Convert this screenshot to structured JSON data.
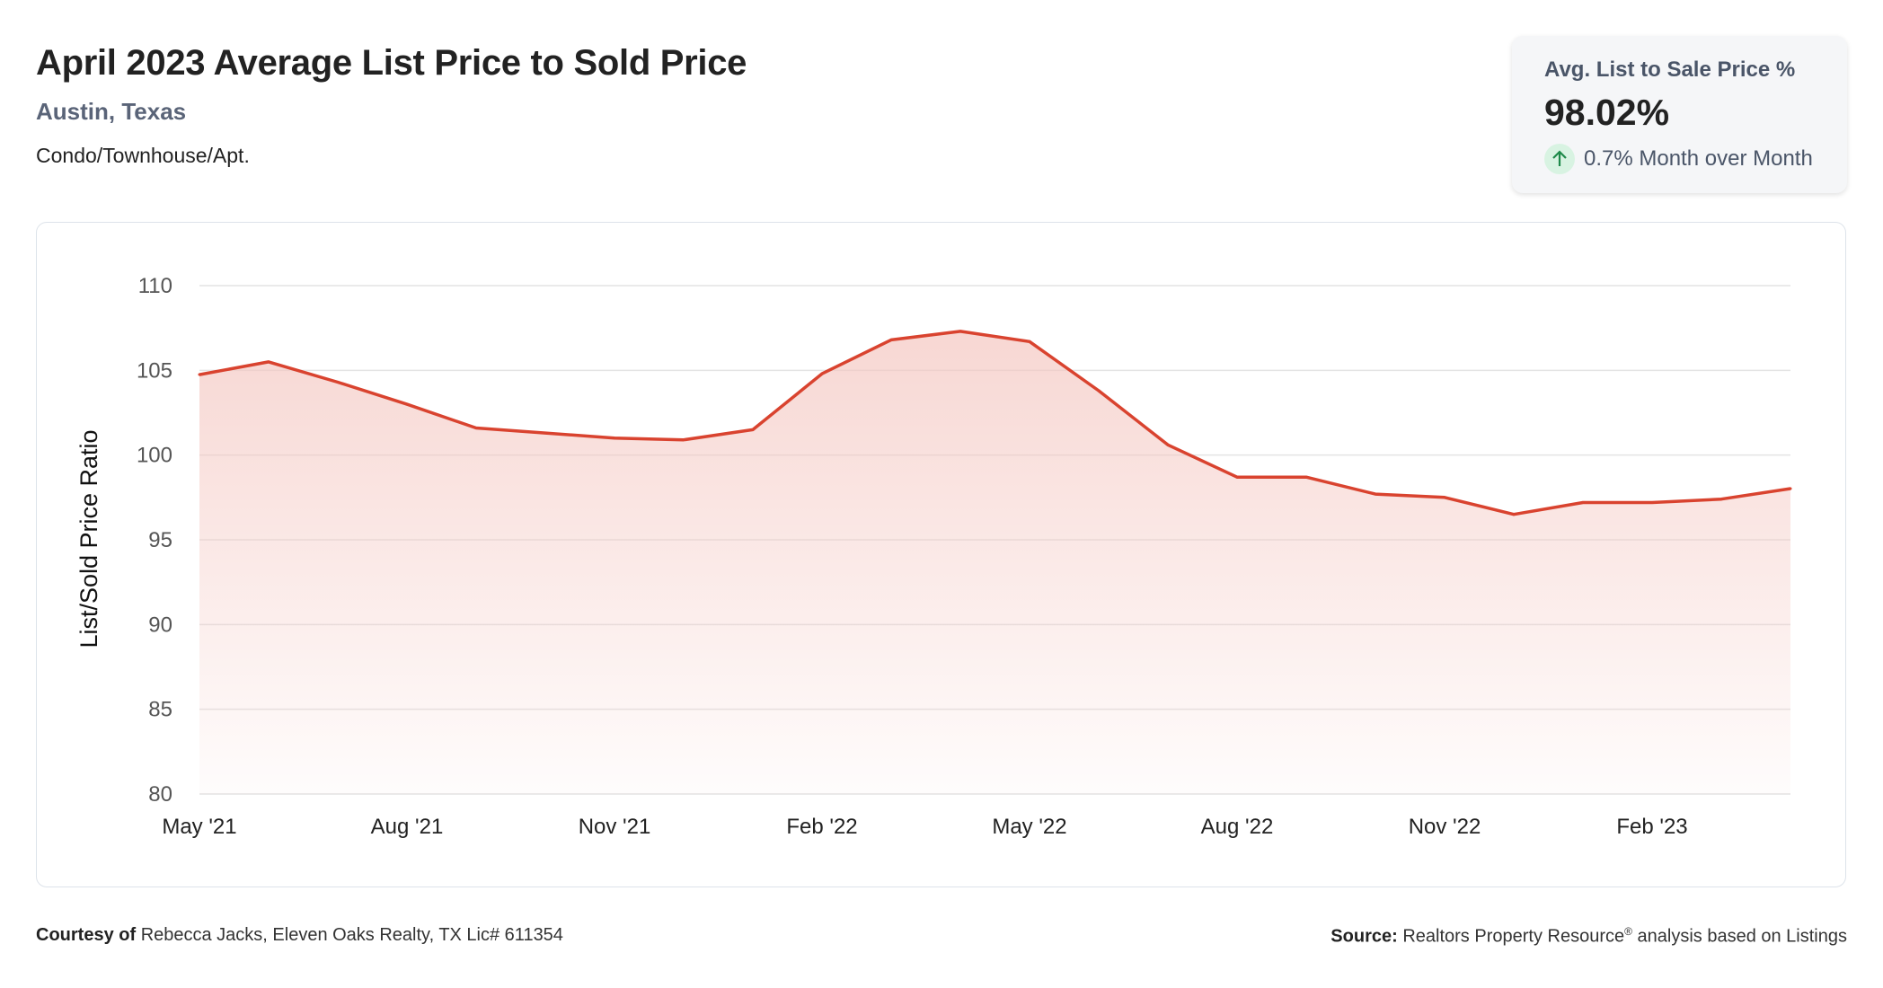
{
  "header": {
    "title": "April 2023 Average List Price to Sold Price",
    "location": "Austin, Texas",
    "property_type": "Condo/Townhouse/Apt."
  },
  "stat_card": {
    "label": "Avg. List to Sale Price %",
    "value": "98.02%",
    "change": "0.7% Month over Month",
    "change_direction": "up",
    "icon": "arrow-up-icon"
  },
  "footer": {
    "courtesy_label": "Courtesy of",
    "courtesy_text": "Rebecca Jacks, Eleven Oaks Realty, TX Lic# 611354",
    "source_label": "Source:",
    "source_text_1": "Realtors Property Resource",
    "source_sup": "®",
    "source_text_2": " analysis based on Listings"
  },
  "colors": {
    "line": "#d9432f",
    "fill": "#f4c6c0",
    "grid": "#e4e4e4"
  },
  "chart_data": {
    "type": "area",
    "title": "April 2023 Average List Price to Sold Price",
    "xlabel": "",
    "ylabel": "List/Sold Price Ratio",
    "ylim": [
      80,
      110
    ],
    "yticks": [
      "80",
      "85",
      "90",
      "95",
      "100",
      "105",
      "110"
    ],
    "ytick_values": [
      80,
      85,
      90,
      95,
      100,
      105,
      110
    ],
    "grid": true,
    "legend": "none",
    "x": [
      "May '21",
      "Jun '21",
      "Jul '21",
      "Aug '21",
      "Sep '21",
      "Oct '21",
      "Nov '21",
      "Dec '21",
      "Jan '22",
      "Feb '22",
      "Mar '22",
      "Apr '22",
      "May '22",
      "Jun '22",
      "Jul '22",
      "Aug '22",
      "Sep '22",
      "Oct '22",
      "Nov '22",
      "Dec '22",
      "Jan '23",
      "Feb '23",
      "Mar '23",
      "Apr '23"
    ],
    "xtick_labels": [
      "May '21",
      "Aug '21",
      "Nov '21",
      "Feb '22",
      "May '22",
      "Aug '22",
      "Nov '22",
      "Feb '23"
    ],
    "xtick_indices": [
      0,
      3,
      6,
      9,
      12,
      15,
      18,
      21
    ],
    "series": [
      {
        "name": "List/Sold Price Ratio",
        "values": [
          104.75,
          105.5,
          104.3,
          103.0,
          101.6,
          101.3,
          101.0,
          100.9,
          101.5,
          104.8,
          106.8,
          107.3,
          106.7,
          103.8,
          100.6,
          98.7,
          98.7,
          97.7,
          97.5,
          96.5,
          97.2,
          97.2,
          97.4,
          98.02
        ]
      }
    ]
  }
}
